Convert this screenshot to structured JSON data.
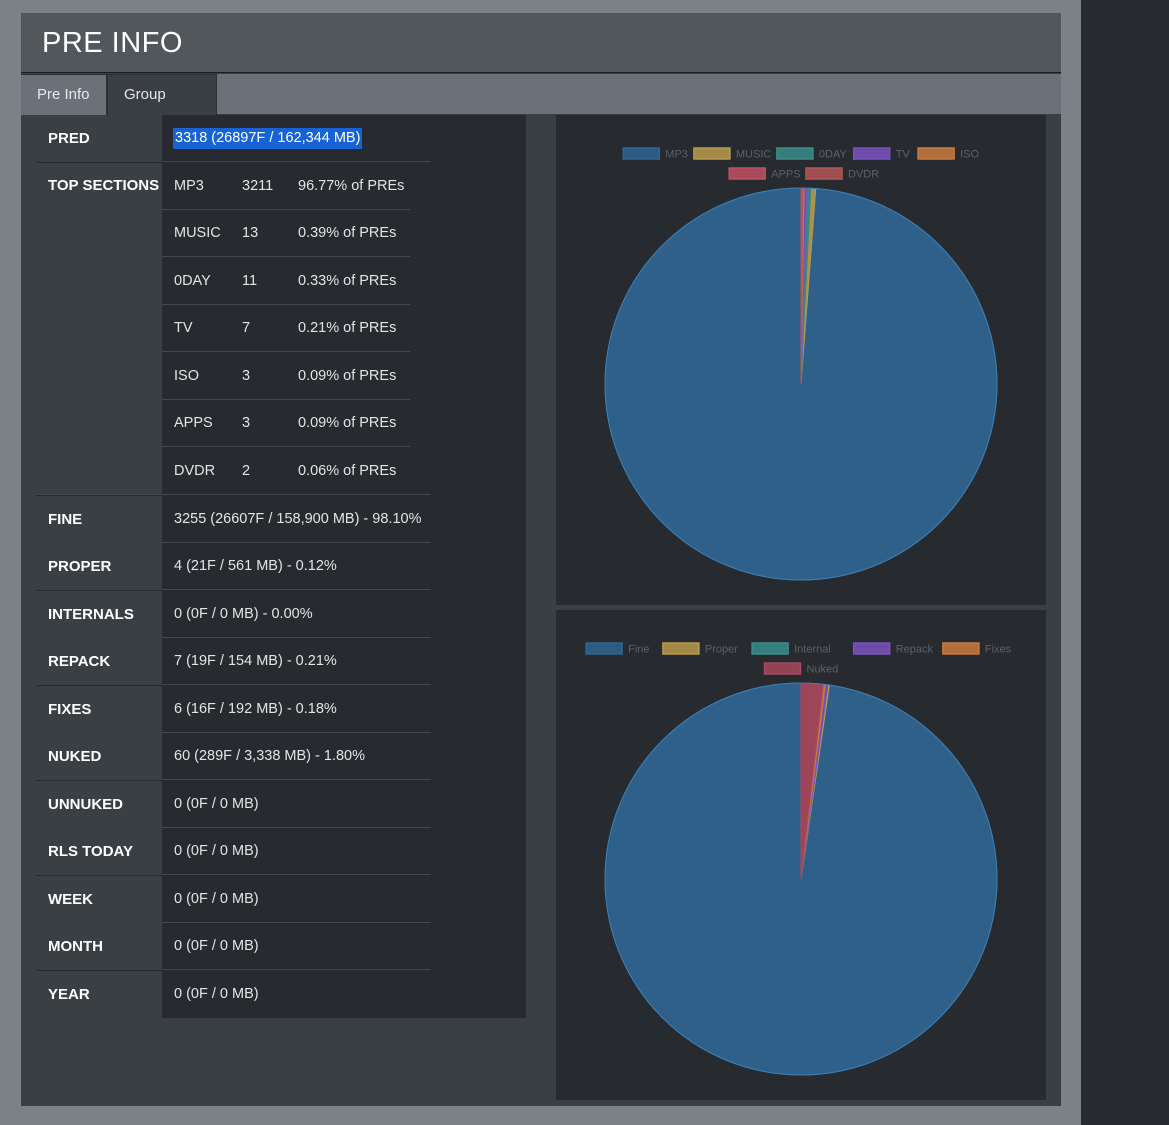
{
  "panel": {
    "title": "PRE INFO",
    "tabs": [
      {
        "label": "Pre Info"
      },
      {
        "label": "Group Stats"
      }
    ]
  },
  "stats": {
    "pred": {
      "label": "PRED",
      "value": "3318 (26897F / 162,344 MB)"
    },
    "top_sections": {
      "label": "TOP SECTIONS",
      "rows": [
        {
          "name": "MP3",
          "count": "3211",
          "pct": "96.77% of PREs"
        },
        {
          "name": "MUSIC",
          "count": "13",
          "pct": "0.39% of PREs"
        },
        {
          "name": "0DAY",
          "count": "11",
          "pct": "0.33% of PREs"
        },
        {
          "name": "TV",
          "count": "7",
          "pct": "0.21% of PREs"
        },
        {
          "name": "ISO",
          "count": "3",
          "pct": "0.09% of PREs"
        },
        {
          "name": "APPS",
          "count": "3",
          "pct": "0.09% of PREs"
        },
        {
          "name": "DVDR",
          "count": "2",
          "pct": "0.06% of PREs"
        }
      ]
    },
    "rows": [
      {
        "label": "FINE",
        "value": "3255 (26607F / 158,900 MB) - 98.10%"
      },
      {
        "label": "PROPER",
        "value": "4 (21F / 561 MB) - 0.12%"
      },
      {
        "label": "INTERNALS",
        "value": "0 (0F / 0 MB) - 0.00%"
      },
      {
        "label": "REPACK",
        "value": "7 (19F / 154 MB) - 0.21%"
      },
      {
        "label": "FIXES",
        "value": "6 (16F / 192 MB) - 0.18%"
      },
      {
        "label": "NUKED",
        "value": "60 (289F / 3,338 MB) - 1.80%"
      },
      {
        "label": "UNNUKED",
        "value": "0 (0F / 0 MB)"
      },
      {
        "label": "RLS TODAY",
        "value": "0 (0F / 0 MB)"
      },
      {
        "label": "WEEK",
        "value": "0 (0F / 0 MB)"
      },
      {
        "label": "MONTH",
        "value": "0 (0F / 0 MB)"
      },
      {
        "label": "YEAR",
        "value": "0 (0F / 0 MB)"
      }
    ]
  },
  "chart_data": [
    {
      "type": "pie",
      "categories": [
        "MP3",
        "MUSIC",
        "0DAY",
        "TV",
        "ISO",
        "APPS",
        "DVDR"
      ],
      "values": [
        3211,
        13,
        11,
        7,
        3,
        3,
        2
      ],
      "colors": [
        "#2f6592",
        "#b89a4c",
        "#3a8d8a",
        "#7a52c0",
        "#c87a3e",
        "#c05060",
        "#b35656"
      ],
      "legend_position": "top"
    },
    {
      "type": "pie",
      "categories": [
        "Fine",
        "Proper",
        "Internal",
        "Repack",
        "Fixes",
        "Nuked"
      ],
      "values": [
        3255,
        4,
        0,
        7,
        6,
        60
      ],
      "colors": [
        "#2f6592",
        "#b89a4c",
        "#3a8d8a",
        "#7a52c0",
        "#c87a3e",
        "#a8485e"
      ],
      "legend_position": "top"
    }
  ]
}
